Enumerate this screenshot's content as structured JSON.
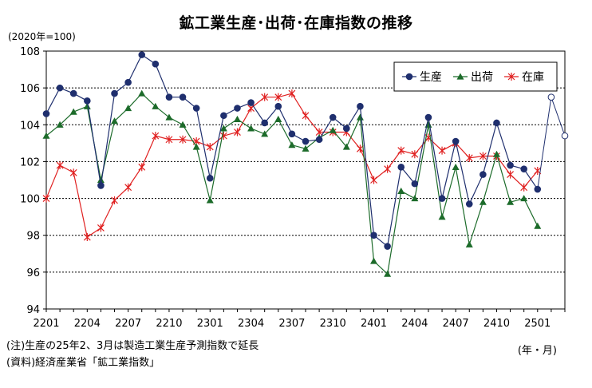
{
  "title": "鉱工業生産･出荷･在庫指数の推移",
  "unit_label": "(2020年=100)",
  "x_unit_label": "(年・月)",
  "notes": [
    "(注)生産の25年2、3月は製造工業生産予測指数で延長",
    "(資料)経済産業省「鉱工業指数」"
  ],
  "chart_data": {
    "type": "line",
    "title": "鉱工業生産･出荷･在庫指数の推移",
    "ylabel": "(2020年=100)",
    "xlabel": "(年・月)",
    "ylim": [
      94,
      108
    ],
    "yticks": [
      94,
      96,
      98,
      100,
      102,
      104,
      106,
      108
    ],
    "xtick_labels": [
      "2201",
      "2204",
      "2207",
      "2210",
      "2301",
      "2304",
      "2307",
      "2310",
      "2401",
      "2404",
      "2407",
      "2410",
      "2501"
    ],
    "xtick_step": 3,
    "grid": true,
    "legend_position": "top-right",
    "x": [
      "2201",
      "2202",
      "2203",
      "2204",
      "2205",
      "2206",
      "2207",
      "2208",
      "2209",
      "2210",
      "2211",
      "2212",
      "2301",
      "2302",
      "2303",
      "2304",
      "2305",
      "2306",
      "2307",
      "2308",
      "2309",
      "2310",
      "2311",
      "2312",
      "2401",
      "2402",
      "2403",
      "2404",
      "2405",
      "2406",
      "2407",
      "2408",
      "2409",
      "2410",
      "2411",
      "2412",
      "2501",
      "2502",
      "2503"
    ],
    "series": [
      {
        "name": "生産",
        "color": "#1f2f6e",
        "marker": "circle",
        "values": [
          104.6,
          106.0,
          105.7,
          105.3,
          100.7,
          105.7,
          106.3,
          107.8,
          107.3,
          105.5,
          105.5,
          104.9,
          101.1,
          104.5,
          104.9,
          105.2,
          104.1,
          105.0,
          103.5,
          103.1,
          103.2,
          104.4,
          103.8,
          105.0,
          98.0,
          97.4,
          101.7,
          100.8,
          104.4,
          100.0,
          103.1,
          99.7,
          101.3,
          104.1,
          101.8,
          101.6,
          100.5,
          null,
          null
        ],
        "forecast_values": [
          null,
          null,
          null,
          null,
          null,
          null,
          null,
          null,
          null,
          null,
          null,
          null,
          null,
          null,
          null,
          null,
          null,
          null,
          null,
          null,
          null,
          null,
          null,
          null,
          null,
          null,
          null,
          null,
          null,
          null,
          null,
          null,
          null,
          null,
          null,
          null,
          100.5,
          105.5,
          103.4
        ]
      },
      {
        "name": "出荷",
        "color": "#1c6b2a",
        "marker": "triangle",
        "values": [
          103.4,
          104.0,
          104.7,
          105.0,
          101.0,
          104.2,
          104.9,
          105.7,
          105.0,
          104.4,
          104.0,
          102.8,
          99.9,
          103.8,
          104.3,
          103.8,
          103.5,
          104.3,
          102.9,
          102.7,
          103.3,
          103.7,
          102.8,
          104.4,
          96.6,
          95.9,
          100.4,
          100.0,
          104.0,
          99.0,
          101.7,
          97.5,
          99.8,
          102.4,
          99.8,
          100.0,
          98.5,
          null,
          null
        ]
      },
      {
        "name": "在庫",
        "color": "#e02020",
        "marker": "asterisk",
        "values": [
          100.0,
          101.8,
          101.4,
          97.9,
          98.4,
          99.9,
          100.6,
          101.7,
          103.4,
          103.2,
          103.2,
          103.1,
          102.8,
          103.4,
          103.6,
          104.9,
          105.5,
          105.5,
          105.7,
          104.5,
          103.6,
          103.6,
          103.6,
          102.7,
          101.0,
          101.6,
          102.6,
          102.4,
          103.3,
          102.6,
          103.0,
          102.2,
          102.3,
          102.3,
          101.3,
          100.6,
          101.5,
          null,
          null
        ]
      }
    ]
  }
}
